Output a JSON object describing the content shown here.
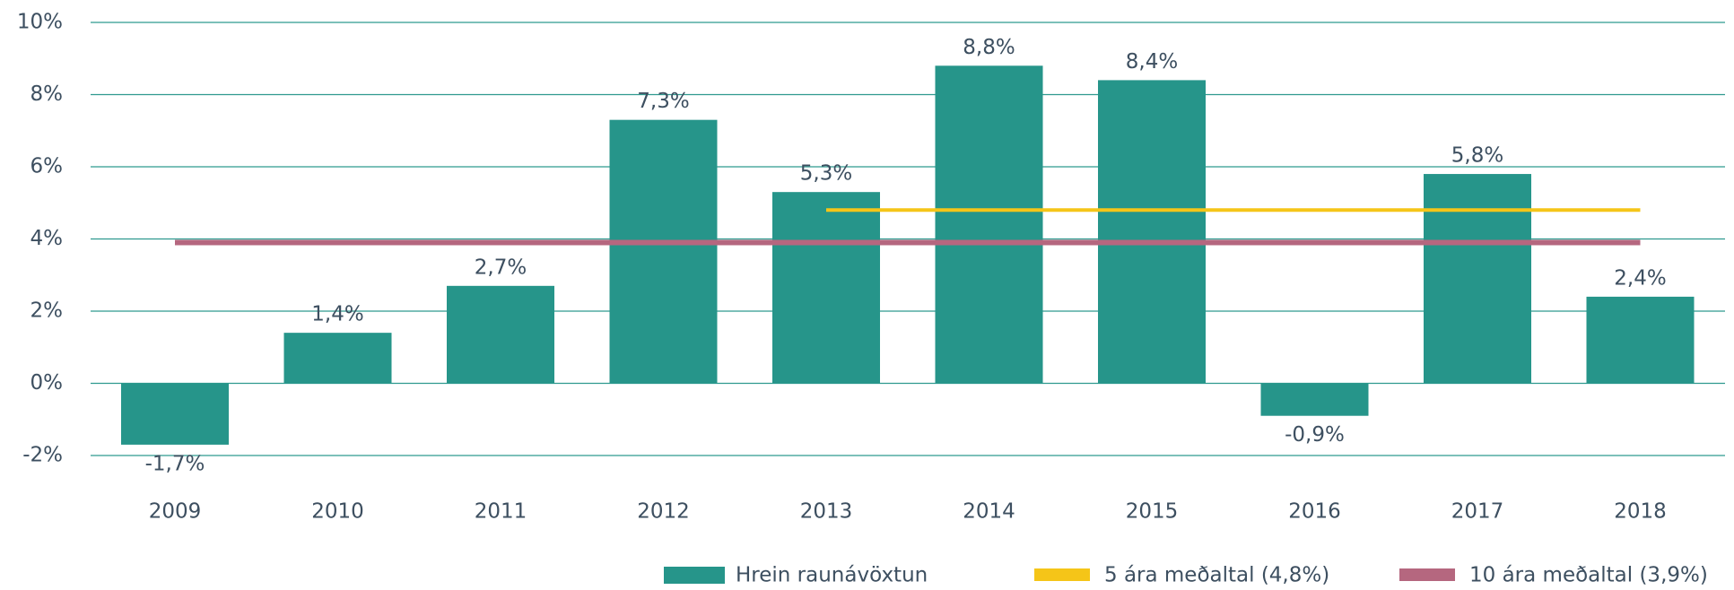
{
  "chart_data": {
    "type": "bar",
    "categories": [
      "2009",
      "2010",
      "2011",
      "2012",
      "2013",
      "2014",
      "2015",
      "2016",
      "2017",
      "2018"
    ],
    "series": [
      {
        "name": "Hrein raunávöxtun",
        "type": "bar",
        "color": "#26958a",
        "values": [
          -1.7,
          1.4,
          2.7,
          7.3,
          5.3,
          8.8,
          8.4,
          -0.9,
          5.8,
          2.4
        ],
        "value_labels": [
          "-1,7%",
          "1,4%",
          "2,7%",
          "7,3%",
          "5,3%",
          "8,8%",
          "8,4%",
          "-0,9%",
          "5,8%",
          "2,4%"
        ]
      },
      {
        "name": "5 ára meðaltal (4,8%)",
        "type": "line",
        "color": "#f5c518",
        "values": [
          null,
          null,
          null,
          null,
          4.8,
          4.8,
          4.8,
          4.8,
          4.8,
          4.8
        ]
      },
      {
        "name": "10 ára meðaltal (3,9%)",
        "type": "line",
        "color": "#b5677f",
        "values": [
          3.9,
          3.9,
          3.9,
          3.9,
          3.9,
          3.9,
          3.9,
          3.9,
          3.9,
          3.9
        ]
      }
    ],
    "ylim": [
      -2,
      10
    ],
    "yticks": [
      {
        "value": -2,
        "label": "-2%"
      },
      {
        "value": 0,
        "label": "0%"
      },
      {
        "value": 2,
        "label": "2%"
      },
      {
        "value": 4,
        "label": "4%"
      },
      {
        "value": 6,
        "label": "6%"
      },
      {
        "value": 8,
        "label": "8%"
      },
      {
        "value": 10,
        "label": "10%"
      }
    ],
    "grid": true
  }
}
